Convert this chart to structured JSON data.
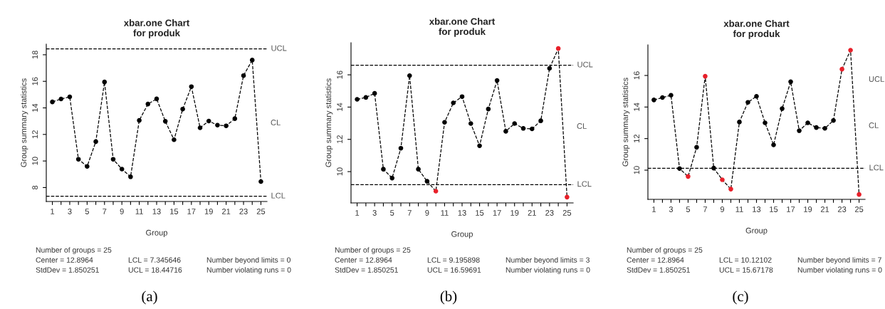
{
  "chart_data": [
    {
      "type": "line",
      "title": "xbar.one Chart\nfor produk",
      "xlabel": "Group",
      "ylabel": "Group summary statistics",
      "categories": [
        "1",
        null,
        "3",
        null,
        "5",
        null,
        "7",
        null,
        "9",
        null,
        "11",
        null,
        "13",
        null,
        "15",
        null,
        "17",
        null,
        "19",
        null,
        "21",
        null,
        "23",
        null,
        "25"
      ],
      "series": [
        {
          "color": "#000000",
          "values": [
            14.45,
            14.67,
            14.83,
            10.13,
            9.59,
            11.46,
            15.95,
            10.13,
            9.39,
            8.81,
            13.06,
            14.29,
            14.68,
            12.99,
            11.6,
            13.91,
            15.6,
            12.5,
            13.01,
            12.7,
            12.65,
            13.19,
            16.43,
            17.6,
            8.45
          ],
          "colors": [
            "#000000",
            "#000000",
            "#000000",
            "#000000",
            "#000000",
            "#000000",
            "#000000",
            "#000000",
            "#000000",
            "#000000",
            "#000000",
            "#000000",
            "#000000",
            "#000000",
            "#000000",
            "#000000",
            "#000000",
            "#000000",
            "#000000",
            "#000000",
            "#000000",
            "#000000",
            "#000000",
            "#000000",
            "#000000"
          ]
        }
      ],
      "marker": "circle",
      "line_style": "dashed",
      "ylim": [
        6.95,
        18.8
      ],
      "yticks": [
        8,
        10,
        12,
        14,
        16,
        18
      ],
      "grid": false,
      "legend": false,
      "ref_lines": [
        {
          "axis": "y",
          "value": 18.44716,
          "label": "UCL",
          "line_style": "dashed"
        },
        {
          "axis": "y",
          "value": 7.345646,
          "label": "LCL",
          "line_style": "dashed"
        }
      ],
      "annotations": [
        "CL",
        "Number of groups = 25",
        "Center = 12.8964",
        "StdDev = 1.850251",
        "LCL = 7.345646",
        "UCL = 18.44716",
        "Number beyond limits = 0",
        "Number violating runs = 0",
        "(a)"
      ]
    },
    {
      "type": "line",
      "title": "xbar.one Chart\nfor produk",
      "xlabel": "Group",
      "ylabel": "Group summary statistics",
      "categories": [
        "1",
        null,
        "3",
        null,
        "5",
        null,
        "7",
        null,
        "9",
        null,
        "11",
        null,
        "13",
        null,
        "15",
        null,
        "17",
        null,
        "19",
        null,
        "21",
        null,
        "23",
        null,
        "25"
      ],
      "series": [
        {
          "color": "#000000",
          "values": [
            14.48,
            14.6,
            14.85,
            10.15,
            9.6,
            11.45,
            15.95,
            10.15,
            9.4,
            8.79,
            13.06,
            14.26,
            14.65,
            12.98,
            11.6,
            13.88,
            15.65,
            12.5,
            12.98,
            12.68,
            12.65,
            13.15,
            16.4,
            17.63,
            8.42
          ],
          "colors": [
            "#000000",
            "#000000",
            "#000000",
            "#000000",
            "#000000",
            "#000000",
            "#000000",
            "#000000",
            "#000000",
            "#e8202a",
            "#000000",
            "#000000",
            "#000000",
            "#000000",
            "#000000",
            "#000000",
            "#000000",
            "#000000",
            "#000000",
            "#000000",
            "#000000",
            "#000000",
            "#000000",
            "#e8202a",
            "#e8202a"
          ]
        }
      ],
      "marker": "circle",
      "line_style": "dashed",
      "ylim": [
        8.06,
        17.99
      ],
      "yticks": [
        10,
        12,
        14,
        16
      ],
      "grid": false,
      "legend": false,
      "ref_lines": [
        {
          "axis": "y",
          "value": 16.59691,
          "label": "UCL",
          "line_style": "dashed"
        },
        {
          "axis": "y",
          "value": 9.195898,
          "label": "LCL",
          "line_style": "dashed"
        }
      ],
      "annotations": [
        "CL",
        "Number of groups = 25",
        "Center = 12.8964",
        "StdDev = 1.850251",
        "LCL = 9.195898",
        "UCL = 16.59691",
        "Number beyond limits = 3",
        "Number violating runs = 0",
        "(b)"
      ]
    },
    {
      "type": "line",
      "title": "xbar.one Chart\nfor produk",
      "xlabel": "Group",
      "ylabel": "Group summary statistics",
      "categories": [
        "1",
        null,
        "3",
        null,
        "5",
        null,
        "7",
        null,
        "9",
        null,
        "11",
        null,
        "13",
        null,
        "15",
        null,
        "17",
        null,
        "19",
        null,
        "21",
        null,
        "23",
        null,
        "25"
      ],
      "series": [
        {
          "color": "#000000",
          "values": [
            14.45,
            14.6,
            14.75,
            10.1,
            9.6,
            11.45,
            15.95,
            10.13,
            9.39,
            8.8,
            13.05,
            14.3,
            14.68,
            13.0,
            11.6,
            13.9,
            15.6,
            12.5,
            13.0,
            12.7,
            12.65,
            13.15,
            16.4,
            17.6,
            8.46
          ],
          "colors": [
            "#000000",
            "#000000",
            "#000000",
            "#000000",
            "#e8202a",
            "#000000",
            "#e8202a",
            "#000000",
            "#e8202a",
            "#e8202a",
            "#000000",
            "#000000",
            "#000000",
            "#000000",
            "#000000",
            "#000000",
            "#000000",
            "#000000",
            "#000000",
            "#000000",
            "#000000",
            "#000000",
            "#e8202a",
            "#e8202a",
            "#e8202a"
          ]
        }
      ],
      "marker": "circle",
      "line_style": "dashed",
      "ylim": [
        8.15,
        17.94
      ],
      "yticks": [
        10,
        12,
        14,
        16
      ],
      "grid": false,
      "legend": false,
      "ref_lines": [
        {
          "axis": "y",
          "value": 10.12102,
          "label": "LCL",
          "line_style": "dashed"
        }
      ],
      "annotations": [
        "UCL",
        "CL",
        "Number of groups = 25",
        "Center = 12.8964",
        "StdDev = 1.850251",
        "LCL = 10.12102",
        "UCL = 15.67178",
        "Number beyond limits = 7",
        "Number violating runs = 0",
        "(c)"
      ]
    }
  ]
}
